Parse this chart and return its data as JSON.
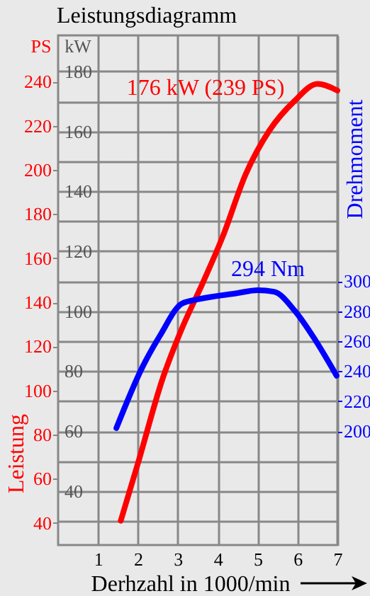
{
  "chart_data": {
    "type": "line",
    "title": "Leistungsdiagramm",
    "xlabel": "Derhzahl in 1000/min",
    "ylabel": "Leistung",
    "y2label": "Drehmoment",
    "annotations": [
      "PS",
      "kW",
      "176 kW (239 PS)",
      "294 Nm"
    ],
    "xlim": [
      0,
      7
    ],
    "xticks": [
      1,
      2,
      3,
      4,
      5,
      6,
      7
    ],
    "ylim": [
      30,
      261
    ],
    "yticks": [
      40,
      60,
      80,
      100,
      120,
      140,
      160,
      180,
      200,
      220,
      240
    ],
    "y2lim": [
      124,
      464
    ],
    "y2ticks": [
      200,
      220,
      240,
      260,
      280,
      300
    ],
    "y3lim": [
      22,
      192
    ],
    "y3ticks": [
      {
        "value": 30,
        "label": null
      },
      40,
      {
        "value": 50,
        "label": null
      },
      60,
      {
        "value": 70,
        "label": null
      },
      80,
      {
        "value": 90,
        "label": null
      },
      100,
      {
        "value": 110,
        "label": null
      },
      120,
      {
        "value": 130,
        "label": null
      },
      140,
      {
        "value": 150,
        "label": null
      },
      160,
      {
        "value": 170,
        "label": null
      },
      180
    ],
    "grid": true,
    "series": [
      {
        "color": "#ff0000",
        "x": [
          1.57,
          2,
          2.63,
          3.1,
          3.63,
          4.13,
          4.7,
          5.3,
          5.91,
          6.5,
          7
        ],
        "values": [
          41,
          67,
          106,
          128,
          149,
          170,
          198,
          218,
          231,
          239,
          236
        ]
      },
      {
        "color": "#0000ff",
        "axis": "y2",
        "x": [
          1.46,
          2.1,
          2.56,
          3.1,
          3.52,
          4.48,
          5,
          5.41,
          5.94,
          6.44,
          6.98
        ],
        "values": [
          202,
          242,
          264,
          285,
          288,
          292,
          294,
          293,
          280,
          261,
          237
        ]
      }
    ]
  }
}
